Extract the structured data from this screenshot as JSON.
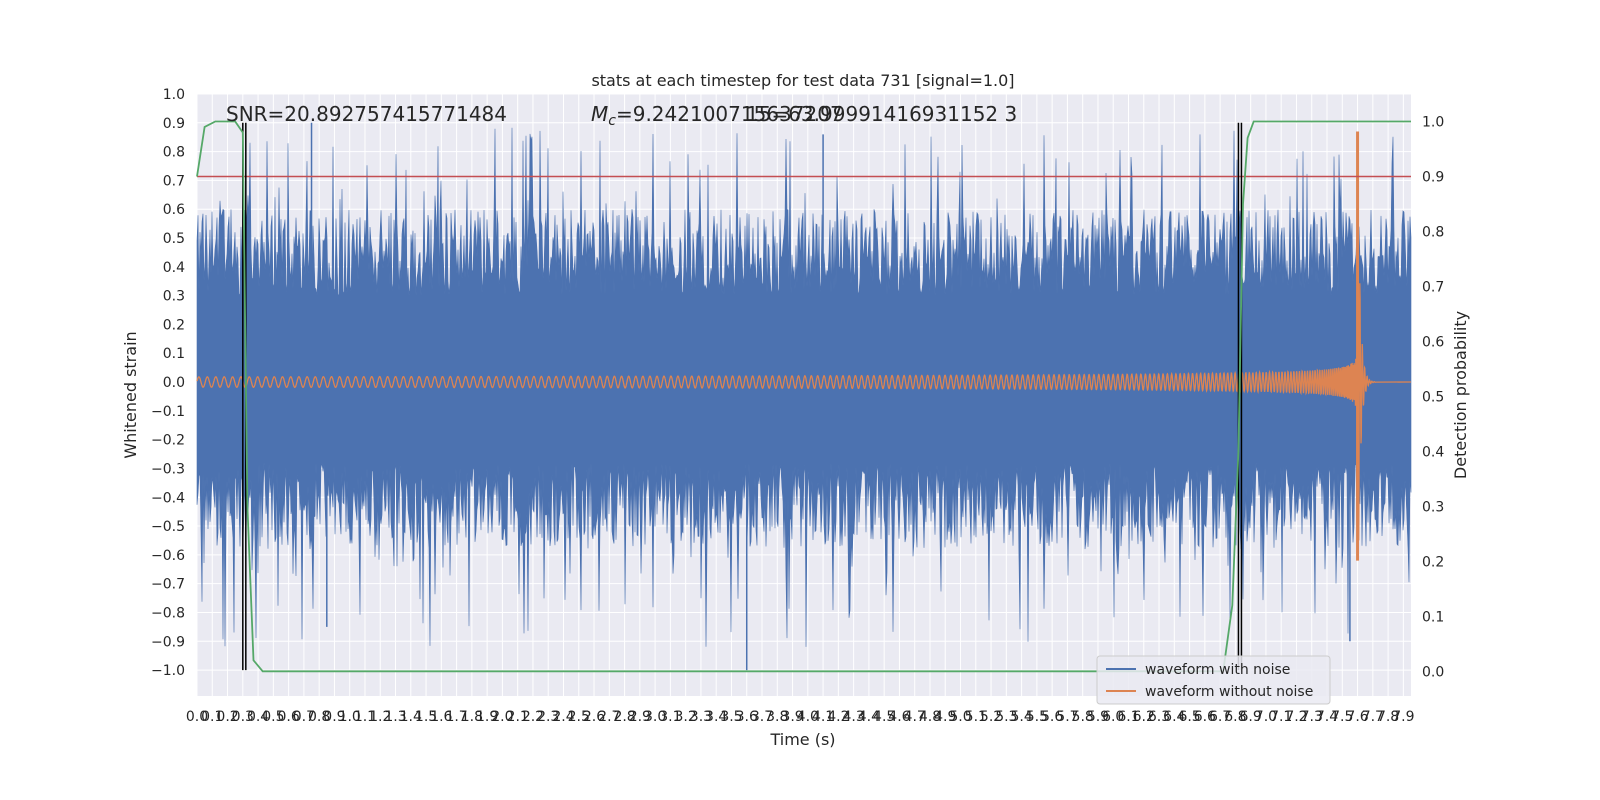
{
  "chart_data": {
    "type": "line",
    "title": "stats at each timestep for test data 731 [signal=1.0]",
    "xlabel": "Time (s)",
    "ylabel": "Whitened strain",
    "y2label": "Detection probability",
    "xlim": [
      0.0,
      7.95
    ],
    "ylim": [
      -1.09,
      1.0
    ],
    "y2lim": [
      -0.045,
      1.05
    ],
    "x_ticks": [
      "0.0",
      "0.1",
      "0.2",
      "0.3",
      "0.4",
      "0.5",
      "0.6",
      "0.7",
      "0.8",
      "0.9",
      "1.0",
      "1.1",
      "1.2",
      "1.3",
      "1.4",
      "1.5",
      "1.6",
      "1.7",
      "1.8",
      "1.9",
      "2.0",
      "2.1",
      "2.2",
      "2.3",
      "2.4",
      "2.5",
      "2.6",
      "2.7",
      "2.8",
      "2.9",
      "3.0",
      "3.1",
      "3.2",
      "3.3",
      "3.4",
      "3.5",
      "3.6",
      "3.7",
      "3.8",
      "3.9",
      "4.0",
      "4.1",
      "4.2",
      "4.3",
      "4.4",
      "4.5",
      "4.6",
      "4.7",
      "4.8",
      "4.9",
      "5.0",
      "5.1",
      "5.2",
      "5.3",
      "5.4",
      "5.5",
      "5.6",
      "5.7",
      "5.8",
      "5.9",
      "6.0",
      "6.1",
      "6.2",
      "6.3",
      "6.4",
      "6.5",
      "6.6",
      "6.7",
      "6.8",
      "6.9",
      "7.0",
      "7.1",
      "7.2",
      "7.3",
      "7.4",
      "7.5",
      "7.6",
      "7.7",
      "7.8",
      "7.9"
    ],
    "y_ticks": [
      "1.0",
      "0.9",
      "0.8",
      "0.7",
      "0.6",
      "0.5",
      "0.4",
      "0.3",
      "0.2",
      "0.1",
      "0.0",
      "−0.1",
      "−0.2",
      "−0.3",
      "−0.4",
      "−0.5",
      "−0.6",
      "−0.7",
      "−0.8",
      "−0.9",
      "−1.0"
    ],
    "y2_ticks": [
      "1.0",
      "0.9",
      "0.8",
      "0.7",
      "0.6",
      "0.5",
      "0.4",
      "0.3",
      "0.2",
      "0.1",
      "0.0"
    ],
    "series": [
      {
        "name": "waveform with noise",
        "color": "#4c72b0",
        "amplitude_range": [
          -1.0,
          0.9
        ]
      },
      {
        "name": "waveform without noise",
        "color": "#dd8452",
        "merger_time": 7.6,
        "peak": 0.87,
        "trough": -0.62
      },
      {
        "name": "detection probability",
        "color": "#55a868",
        "axis": "right",
        "points": [
          [
            0.0,
            0.9
          ],
          [
            0.05,
            0.99
          ],
          [
            0.12,
            1.0
          ],
          [
            0.25,
            1.0
          ],
          [
            0.3,
            0.98
          ],
          [
            0.33,
            0.3
          ],
          [
            0.37,
            0.02
          ],
          [
            0.43,
            0.0
          ],
          [
            6.72,
            0.0
          ],
          [
            6.78,
            0.12
          ],
          [
            6.82,
            0.4
          ],
          [
            6.85,
            0.85
          ],
          [
            6.88,
            0.97
          ],
          [
            6.92,
            1.0
          ],
          [
            7.95,
            1.0
          ]
        ]
      }
    ],
    "threshold": {
      "value": 0.9,
      "axis": "right",
      "color": "#c44e52"
    },
    "vertical_markers": [
      0.3,
      6.82
    ],
    "annotations": {
      "snr": "SNR=20.892757415771484",
      "mc": "=9.242100715637207",
      "mc_symbol": "M",
      "mc_sub": "c",
      "overlap": "15=63.99991416931152 3"
    },
    "legend": {
      "position": "bottom-right",
      "entries": [
        "waveform with noise",
        "waveform without noise"
      ]
    }
  }
}
